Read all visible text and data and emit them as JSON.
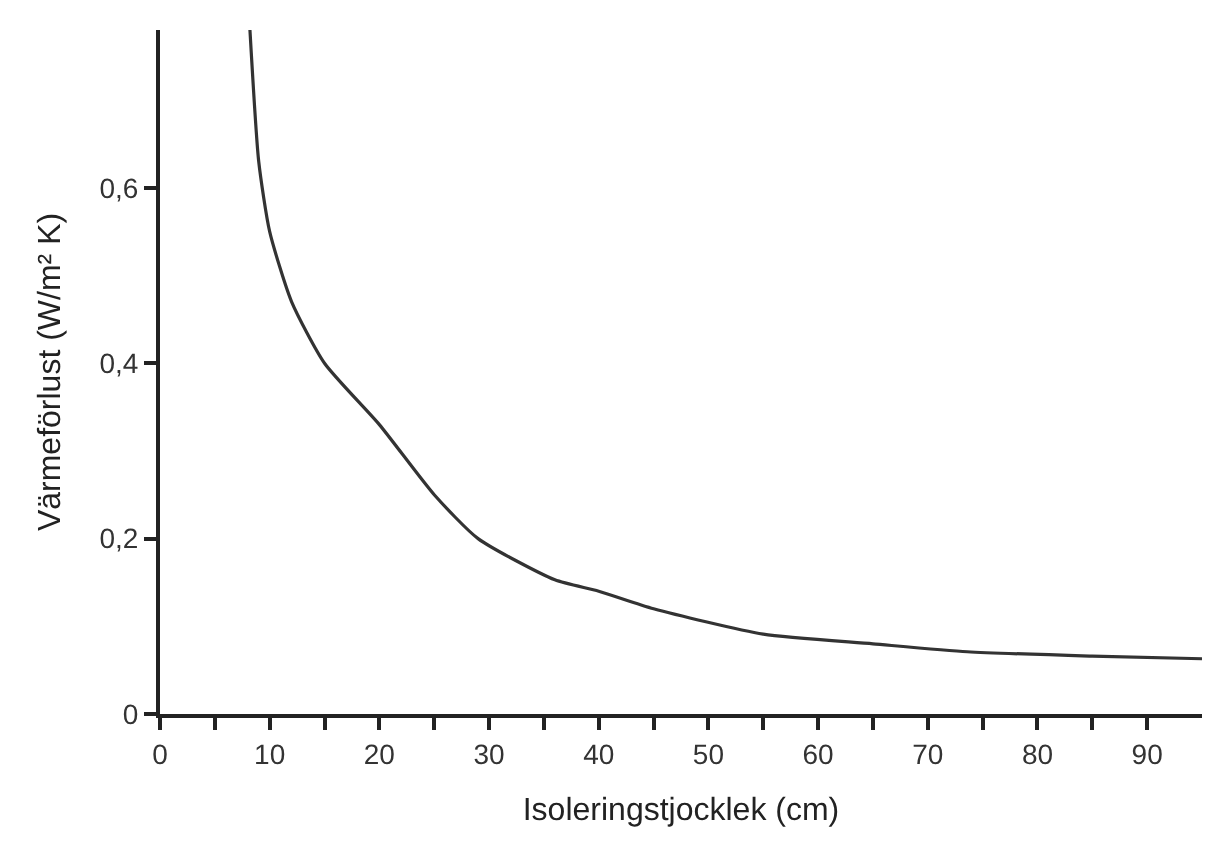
{
  "chart_data": {
    "type": "line",
    "xlabel": "Isoleringstjocklek (cm)",
    "ylabel": "Värmeförlust (W/m² K)",
    "x": [
      8.2,
      9,
      10,
      12,
      15,
      20,
      25,
      29,
      36,
      40,
      45,
      55,
      65,
      73.6,
      85,
      95
    ],
    "series": [
      {
        "color": "#333333",
        "values": [
          0.78,
          0.63,
          0.55,
          0.47,
          0.4,
          0.33,
          0.25,
          0.2,
          0.153,
          0.14,
          0.12,
          0.091,
          0.08,
          0.071,
          0.066,
          0.063
        ]
      }
    ],
    "xlim": [
      0,
      95
    ],
    "ylim": [
      0,
      0.78
    ],
    "xticks": [
      0,
      {
        "value": 5,
        "label": null
      },
      10,
      {
        "value": 15,
        "label": null
      },
      20,
      {
        "value": 25,
        "label": null
      },
      30,
      {
        "value": 35,
        "label": null
      },
      40,
      {
        "value": 45,
        "label": null
      },
      50,
      {
        "value": 55,
        "label": null
      },
      60,
      {
        "value": 65,
        "label": null
      },
      70,
      {
        "value": 75,
        "label": null
      },
      80,
      {
        "value": 85,
        "label": null
      },
      90
    ],
    "yticks": [
      0,
      {
        "value": 0.2,
        "label": "0,2"
      },
      {
        "value": 0.4,
        "label": "0,4"
      },
      {
        "value": 0.6,
        "label": "0,6"
      }
    ],
    "marker": "none",
    "line_style": "solid"
  }
}
